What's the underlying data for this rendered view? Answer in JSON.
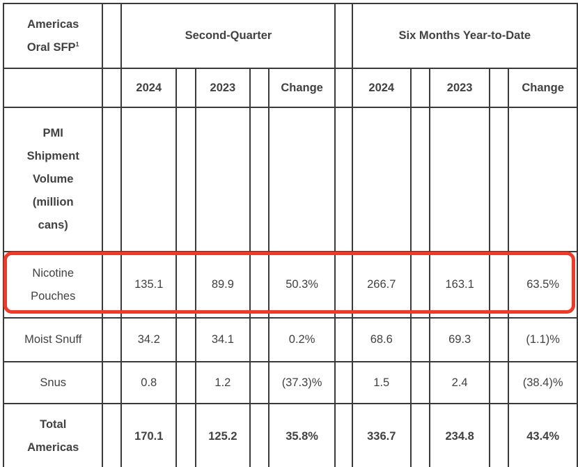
{
  "table": {
    "corner": {
      "line1": "Americas",
      "line2": "Oral SFP",
      "footnote_marker": "1"
    },
    "group_headers": {
      "second_quarter": "Second-Quarter",
      "six_months": "Six Months Year-to-Date"
    },
    "column_headers": [
      "2024",
      "2023",
      "Change",
      "2024",
      "2023",
      "Change"
    ],
    "rows": [
      {
        "label": "PMI\nShipment\nVolume\n(million\ncans)",
        "bold": true,
        "section": true,
        "highlighted": false,
        "values": [
          "",
          "",
          "",
          "",
          "",
          ""
        ]
      },
      {
        "label": "Nicotine\nPouches",
        "bold": false,
        "section": false,
        "highlighted": true,
        "values": [
          "135.1",
          "89.9",
          "50.3%",
          "266.7",
          "163.1",
          "63.5%"
        ]
      },
      {
        "label": "Moist Snuff",
        "bold": false,
        "section": false,
        "highlighted": false,
        "values": [
          "34.2",
          "34.1",
          "0.2%",
          "68.6",
          "69.3",
          "(1.1)%"
        ]
      },
      {
        "label": "Snus",
        "bold": false,
        "section": false,
        "highlighted": false,
        "values": [
          "0.8",
          "1.2",
          "(37.3)%",
          "1.5",
          "2.4",
          "(38.4)%"
        ]
      },
      {
        "label": "Total\nAmericas",
        "bold": true,
        "section": false,
        "highlighted": false,
        "values": [
          "170.1",
          "125.2",
          "35.8%",
          "336.7",
          "234.8",
          "43.4%"
        ]
      }
    ],
    "colors": {
      "text": "#414042",
      "border": "#3a3a3a",
      "highlight": "#f23827",
      "background": "#ffffff"
    }
  }
}
